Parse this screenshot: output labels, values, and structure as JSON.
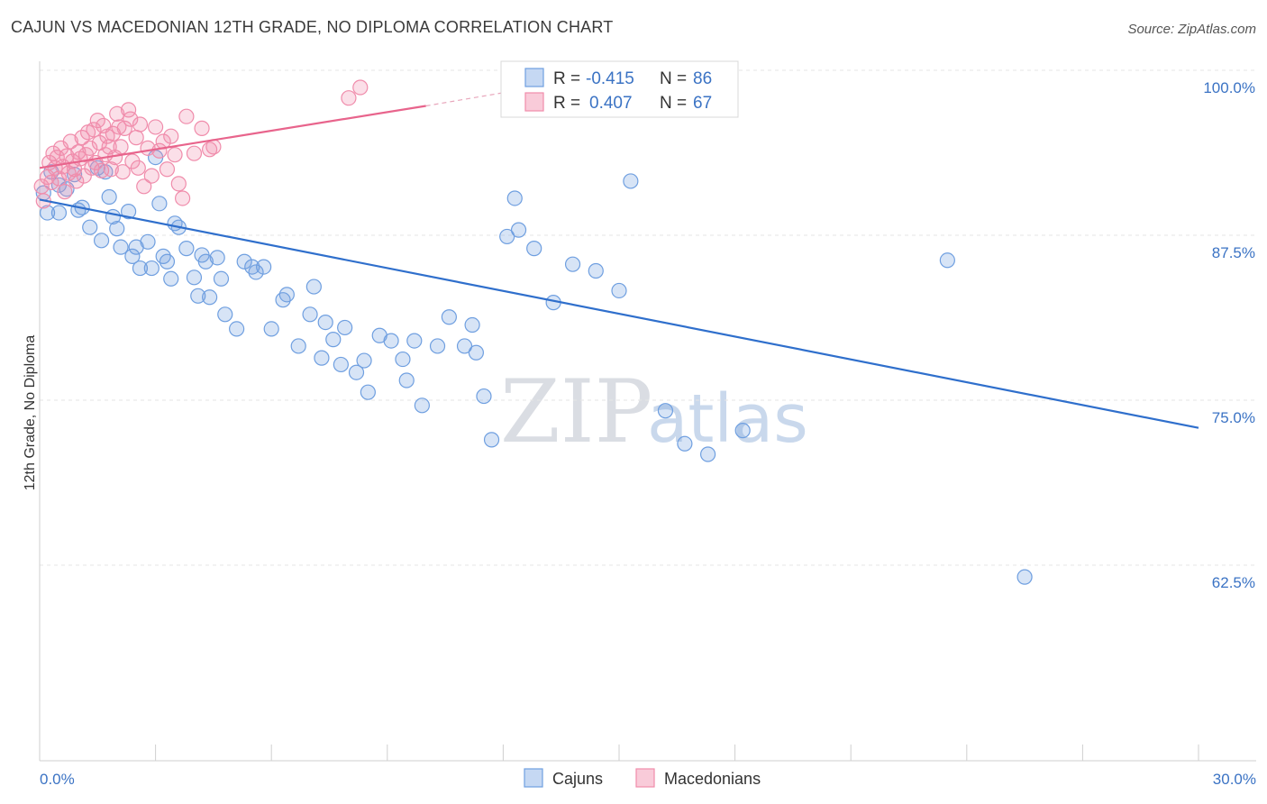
{
  "title": "CAJUN VS MACEDONIAN 12TH GRADE, NO DIPLOMA CORRELATION CHART",
  "source": "Source: ZipAtlas.com",
  "watermark": {
    "zip": "ZIP",
    "atlas": "atlas"
  },
  "colors": {
    "cajun": "#6f9fe0",
    "cajun_line": "#2f6fcc",
    "macedonian": "#f08cab",
    "macedonian_line": "#e8648c",
    "accent_text": "#3b73c4"
  },
  "legend": {
    "items": [
      {
        "r_label": "R =",
        "r_value": "-0.415",
        "n_label": "N =",
        "n_value": "86"
      },
      {
        "r_label": "R =",
        "r_value": "0.407",
        "n_label": "N =",
        "n_value": "67"
      }
    ]
  },
  "bottom_legend": [
    "Cajuns",
    "Macedonians"
  ],
  "chart_data": {
    "type": "scatter",
    "title": "CAJUN VS MACEDONIAN 12TH GRADE, NO DIPLOMA CORRELATION CHART",
    "xlabel": "",
    "ylabel": "12th Grade, No Diploma",
    "xlim": [
      0,
      30
    ],
    "ylim": [
      55,
      100
    ],
    "x_tick_labels": [
      "0.0%",
      "30.0%"
    ],
    "y_ticks": [
      62.5,
      75.0,
      87.5,
      100.0
    ],
    "y_tick_labels": [
      "62.5%",
      "75.0%",
      "87.5%",
      "100.0%"
    ],
    "grid": true,
    "legend_position": "top-center",
    "series": [
      {
        "name": "Cajuns",
        "color": "#6f9fe0",
        "trend": {
          "x": [
            0,
            30
          ],
          "y": [
            91.5,
            74.2
          ]
        },
        "points": [
          [
            0.1,
            92.0
          ],
          [
            0.2,
            90.5
          ],
          [
            0.3,
            93.6
          ],
          [
            0.5,
            92.6
          ],
          [
            0.5,
            90.5
          ],
          [
            0.7,
            92.3
          ],
          [
            0.9,
            93.4
          ],
          [
            1.0,
            90.7
          ],
          [
            1.1,
            90.9
          ],
          [
            1.3,
            89.4
          ],
          [
            1.5,
            93.9
          ],
          [
            1.6,
            88.4
          ],
          [
            1.7,
            93.6
          ],
          [
            1.8,
            91.7
          ],
          [
            1.9,
            90.2
          ],
          [
            2.0,
            89.3
          ],
          [
            2.1,
            87.9
          ],
          [
            2.3,
            90.6
          ],
          [
            2.4,
            87.2
          ],
          [
            2.5,
            87.9
          ],
          [
            2.6,
            86.3
          ],
          [
            2.8,
            88.3
          ],
          [
            2.9,
            86.3
          ],
          [
            3.0,
            94.7
          ],
          [
            3.1,
            91.2
          ],
          [
            3.2,
            87.2
          ],
          [
            3.3,
            86.8
          ],
          [
            3.4,
            85.5
          ],
          [
            3.5,
            89.7
          ],
          [
            3.6,
            89.4
          ],
          [
            3.8,
            87.8
          ],
          [
            4.0,
            85.6
          ],
          [
            4.1,
            84.2
          ],
          [
            4.2,
            87.3
          ],
          [
            4.3,
            86.8
          ],
          [
            4.4,
            84.1
          ],
          [
            4.6,
            87.1
          ],
          [
            4.7,
            85.5
          ],
          [
            4.8,
            82.8
          ],
          [
            5.1,
            81.7
          ],
          [
            5.3,
            86.8
          ],
          [
            5.5,
            86.4
          ],
          [
            5.6,
            86.0
          ],
          [
            5.8,
            86.4
          ],
          [
            6.0,
            81.7
          ],
          [
            6.3,
            83.9
          ],
          [
            6.4,
            84.3
          ],
          [
            6.7,
            80.4
          ],
          [
            7.0,
            82.8
          ],
          [
            7.1,
            84.9
          ],
          [
            7.3,
            79.5
          ],
          [
            7.4,
            82.2
          ],
          [
            7.6,
            80.9
          ],
          [
            7.8,
            79.0
          ],
          [
            7.9,
            81.8
          ],
          [
            8.2,
            78.4
          ],
          [
            8.4,
            79.3
          ],
          [
            8.5,
            76.9
          ],
          [
            8.8,
            81.2
          ],
          [
            9.1,
            80.8
          ],
          [
            9.4,
            79.4
          ],
          [
            9.5,
            77.8
          ],
          [
            9.7,
            80.8
          ],
          [
            9.9,
            75.9
          ],
          [
            10.3,
            80.4
          ],
          [
            10.6,
            82.6
          ],
          [
            11.0,
            80.4
          ],
          [
            11.2,
            82.0
          ],
          [
            11.3,
            79.9
          ],
          [
            11.5,
            76.6
          ],
          [
            11.7,
            73.3
          ],
          [
            12.1,
            88.7
          ],
          [
            12.3,
            91.6
          ],
          [
            12.4,
            89.2
          ],
          [
            12.8,
            87.8
          ],
          [
            13.3,
            83.7
          ],
          [
            13.8,
            86.6
          ],
          [
            14.4,
            86.1
          ],
          [
            15.0,
            84.6
          ],
          [
            15.3,
            92.9
          ],
          [
            16.2,
            75.5
          ],
          [
            16.7,
            73.0
          ],
          [
            17.3,
            72.2
          ],
          [
            18.2,
            74.0
          ],
          [
            23.5,
            86.9
          ],
          [
            25.5,
            62.9
          ]
        ]
      },
      {
        "name": "Macedonians",
        "color": "#f08cab",
        "trend": {
          "x": [
            0,
            10
          ],
          "y": [
            93.9,
            98.6
          ]
        },
        "trend_extension": {
          "x": [
            10,
            12
          ],
          "y": [
            98.6,
            99.6
          ]
        },
        "points": [
          [
            0.05,
            92.5
          ],
          [
            0.1,
            91.4
          ],
          [
            0.2,
            93.2
          ],
          [
            0.25,
            94.3
          ],
          [
            0.3,
            92.8
          ],
          [
            0.35,
            95.0
          ],
          [
            0.4,
            93.9
          ],
          [
            0.45,
            94.7
          ],
          [
            0.5,
            93.1
          ],
          [
            0.55,
            95.4
          ],
          [
            0.6,
            94.0
          ],
          [
            0.65,
            92.1
          ],
          [
            0.7,
            94.8
          ],
          [
            0.75,
            93.5
          ],
          [
            0.8,
            95.9
          ],
          [
            0.85,
            94.4
          ],
          [
            0.9,
            93.8
          ],
          [
            0.95,
            92.9
          ],
          [
            1.0,
            95.1
          ],
          [
            1.05,
            94.6
          ],
          [
            1.1,
            96.2
          ],
          [
            1.15,
            93.3
          ],
          [
            1.2,
            94.9
          ],
          [
            1.25,
            96.6
          ],
          [
            1.3,
            95.4
          ],
          [
            1.35,
            93.9
          ],
          [
            1.4,
            96.8
          ],
          [
            1.45,
            94.3
          ],
          [
            1.5,
            97.5
          ],
          [
            1.55,
            95.8
          ],
          [
            1.6,
            93.7
          ],
          [
            1.65,
            97.1
          ],
          [
            1.7,
            94.9
          ],
          [
            1.75,
            96.3
          ],
          [
            1.8,
            95.5
          ],
          [
            1.85,
            93.8
          ],
          [
            1.9,
            96.5
          ],
          [
            1.95,
            94.7
          ],
          [
            2.0,
            98.0
          ],
          [
            2.05,
            97.0
          ],
          [
            2.1,
            95.5
          ],
          [
            2.15,
            93.6
          ],
          [
            2.2,
            96.9
          ],
          [
            2.3,
            98.3
          ],
          [
            2.35,
            97.6
          ],
          [
            2.4,
            94.4
          ],
          [
            2.5,
            96.2
          ],
          [
            2.55,
            93.9
          ],
          [
            2.6,
            97.2
          ],
          [
            2.7,
            92.5
          ],
          [
            2.8,
            95.4
          ],
          [
            2.9,
            93.3
          ],
          [
            3.0,
            97.0
          ],
          [
            3.1,
            95.2
          ],
          [
            3.2,
            95.9
          ],
          [
            3.3,
            93.8
          ],
          [
            3.4,
            96.3
          ],
          [
            3.5,
            94.9
          ],
          [
            3.6,
            92.7
          ],
          [
            3.7,
            91.6
          ],
          [
            3.8,
            97.8
          ],
          [
            4.0,
            95.0
          ],
          [
            4.2,
            96.9
          ],
          [
            4.4,
            95.3
          ],
          [
            4.5,
            95.5
          ],
          [
            8.0,
            99.2
          ],
          [
            8.3,
            100.0
          ]
        ]
      }
    ]
  }
}
